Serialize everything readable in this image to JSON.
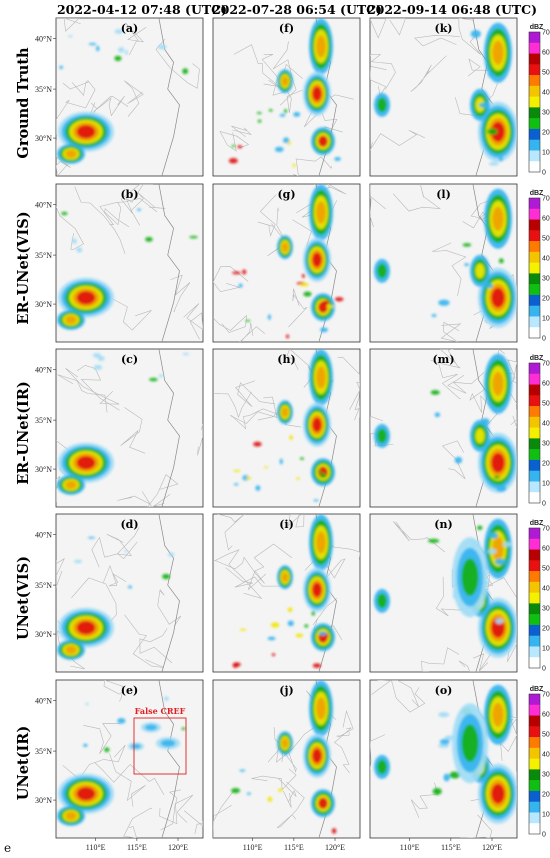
{
  "columns": [
    "2022-04-12 07:48 (UTC)",
    "2022-07-28 06:54 (UTC)",
    "2022-09-14 06:48 (UTC)"
  ],
  "rows": [
    "Ground Truth",
    "ER-UNet(VIS)",
    "ER-UNet(IR)",
    "UNet(VIS)",
    "UNet(IR)"
  ],
  "panel_letters": [
    [
      "(a)",
      "(f)",
      "(k)"
    ],
    [
      "(b)",
      "(g)",
      "(l)"
    ],
    [
      "(c)",
      "(h)",
      "(m)"
    ],
    [
      "(d)",
      "(i)",
      "(n)"
    ],
    [
      "(e)",
      "(j)",
      "(o)"
    ]
  ],
  "lat_ticks": [
    "40°N",
    "35°N",
    "30°N"
  ],
  "lon_ticks": [
    "110°E",
    "115°E",
    "120°E"
  ],
  "colorbar": {
    "unit": "dBZ",
    "ticks": [
      "70",
      "60",
      "50",
      "40",
      "30",
      "20",
      "10",
      "0"
    ],
    "colors": [
      "#b01ad4",
      "#ff2dd6",
      "#b80000",
      "#e81010",
      "#ff7a00",
      "#f4c400",
      "#f5f000",
      "#0a8a0a",
      "#10c010",
      "#0a60d0",
      "#35b4f0",
      "#b8e8ff",
      "#ffffff"
    ]
  },
  "annotation": {
    "label": "False CREF",
    "color": "#e02020"
  },
  "corner_label": "e"
}
